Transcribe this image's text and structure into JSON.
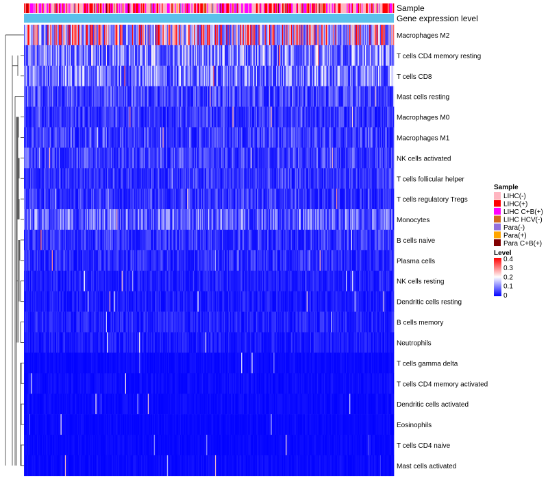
{
  "chart_data": {
    "type": "heatmap",
    "title": "",
    "column_annotations": [
      {
        "label": "Sample",
        "kind": "categorical"
      },
      {
        "label": "Gene expression level",
        "kind": "continuous"
      }
    ],
    "rows": [
      {
        "name": "Macrophages M2",
        "mean": 0.27
      },
      {
        "name": "T cells CD4 memory resting",
        "mean": 0.12
      },
      {
        "name": "T cells CD8",
        "mean": 0.11
      },
      {
        "name": "Mast cells resting",
        "mean": 0.065
      },
      {
        "name": "Macrophages M0",
        "mean": 0.05
      },
      {
        "name": "Macrophages M1",
        "mean": 0.06
      },
      {
        "name": "NK cells activated",
        "mean": 0.06
      },
      {
        "name": "T cells follicular helper",
        "mean": 0.05
      },
      {
        "name": "T cells regulatory  Tregs",
        "mean": 0.05
      },
      {
        "name": "Monocytes",
        "mean": 0.09
      },
      {
        "name": "B cells naive",
        "mean": 0.05
      },
      {
        "name": "Plasma cells",
        "mean": 0.04
      },
      {
        "name": "NK cells resting",
        "mean": 0.03
      },
      {
        "name": "Dendritic cells resting",
        "mean": 0.025
      },
      {
        "name": "B cells memory",
        "mean": 0.03
      },
      {
        "name": "Neutrophils",
        "mean": 0.025
      },
      {
        "name": "T cells gamma delta",
        "mean": 0.01
      },
      {
        "name": "T cells CD4 memory activated",
        "mean": 0.012
      },
      {
        "name": "Dendritic cells activated",
        "mean": 0.01
      },
      {
        "name": "Eosinophils",
        "mean": 0.008
      },
      {
        "name": "T cells CD4 naive",
        "mean": 0.008
      },
      {
        "name": "Mast cells activated",
        "mean": 0.01
      }
    ],
    "n_columns": 424,
    "color_scale": {
      "min": 0,
      "max": 0.4,
      "ticks": [
        "0.4",
        "0.3",
        "0.2",
        "0.1",
        "0"
      ],
      "colors": [
        "#0000ff",
        "#ffffff",
        "#ff0000"
      ]
    },
    "legend_position": "right"
  },
  "legend": {
    "sample_title": "Sample",
    "sample_items": [
      {
        "label": "LIHC(-)",
        "color": "#ffb6c1"
      },
      {
        "label": "LIHC(+)",
        "color": "#ff0000"
      },
      {
        "label": "LIHC C+B(+)",
        "color": "#ff00ff"
      },
      {
        "label": "LIHC HCV(-)",
        "color": "#d2691e"
      },
      {
        "label": "Para(-)",
        "color": "#9370db"
      },
      {
        "label": "Para(+)",
        "color": "#ffa500"
      },
      {
        "label": "Para C+B(+)",
        "color": "#800000"
      }
    ],
    "level_title": "Level"
  },
  "expression_bar_color": "#5bc0eb"
}
